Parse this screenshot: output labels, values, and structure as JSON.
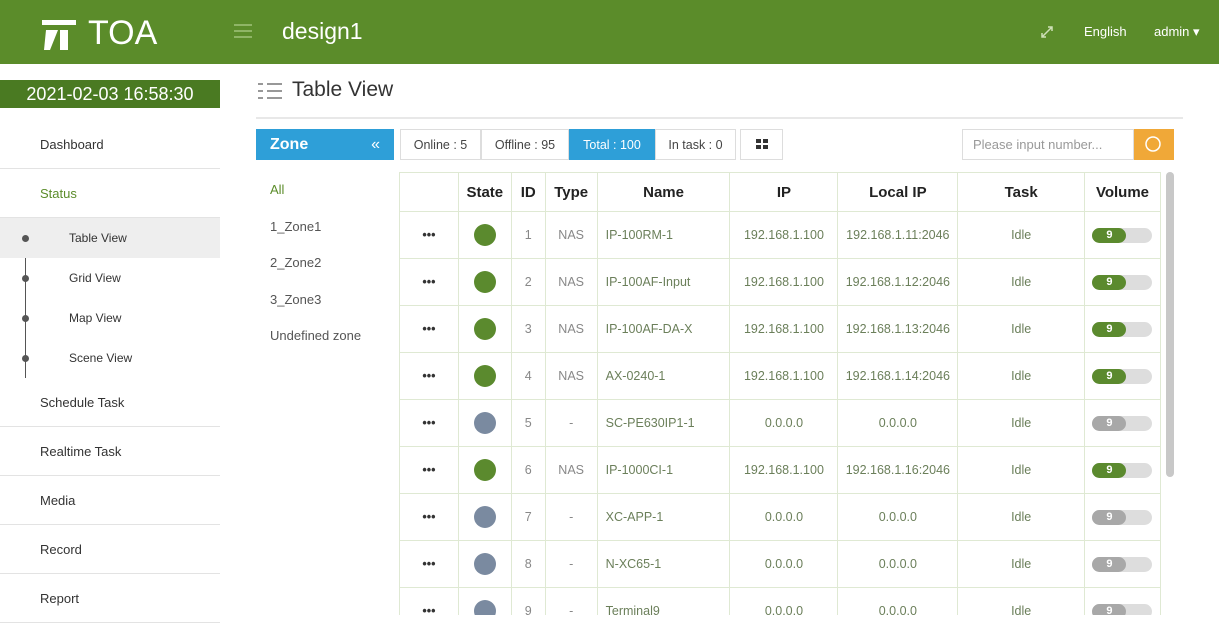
{
  "header": {
    "logo": "TOA",
    "project": "design1",
    "language": "English",
    "user": "admin"
  },
  "sidebar": {
    "datetime": "2021-02-03 16:58:30",
    "menu": [
      {
        "label": "Dashboard"
      },
      {
        "label": "Status",
        "children": [
          "Table View",
          "Grid View",
          "Map View",
          "Scene View"
        ]
      },
      {
        "label": "Schedule Task"
      },
      {
        "label": "Realtime Task"
      },
      {
        "label": "Media"
      },
      {
        "label": "Record"
      },
      {
        "label": "Report"
      }
    ]
  },
  "page_title": "Table View",
  "zone": {
    "title": "Zone",
    "items": [
      "All",
      "1_Zone1",
      "2_Zone2",
      "3_Zone3",
      "Undefined zone"
    ]
  },
  "filters": [
    "Online : 5",
    "Offline : 95",
    "Total : 100",
    "In task : 0"
  ],
  "search_placeholder": "Please input number...",
  "table": {
    "columns": [
      "State",
      "ID",
      "Type",
      "Name",
      "IP",
      "Local IP",
      "Task",
      "Volume"
    ],
    "rows": [
      {
        "state_color": "#5b8a2e",
        "id": 1,
        "type": "NAS",
        "name": "IP-100RM-1",
        "ip": "192.168.1.100",
        "local_ip": "192.168.1.11:2046",
        "task": "Idle",
        "volume": 9
      },
      {
        "state_color": "#5b8a2e",
        "id": 2,
        "type": "NAS",
        "name": "IP-100AF-Input",
        "ip": "192.168.1.100",
        "local_ip": "192.168.1.12:2046",
        "task": "Idle",
        "volume": 9
      },
      {
        "state_color": "#5b8a2e",
        "id": 3,
        "type": "NAS",
        "name": "IP-100AF-DA-X",
        "ip": "192.168.1.100",
        "local_ip": "192.168.1.13:2046",
        "task": "Idle",
        "volume": 9
      },
      {
        "state_color": "#5b8a2e",
        "id": 4,
        "type": "NAS",
        "name": "AX-0240-1",
        "ip": "192.168.1.100",
        "local_ip": "192.168.1.14:2046",
        "task": "Idle",
        "volume": 9
      },
      {
        "state_color": "#7a8aa0",
        "id": 5,
        "type": "-",
        "name": "SC-PE630IP1-1",
        "ip": "0.0.0.0",
        "local_ip": "0.0.0.0",
        "task": "Idle",
        "volume": 9
      },
      {
        "state_color": "#5b8a2e",
        "id": 6,
        "type": "NAS",
        "name": "IP-1000CI-1",
        "ip": "192.168.1.100",
        "local_ip": "192.168.1.16:2046",
        "task": "Idle",
        "volume": 9
      },
      {
        "state_color": "#7a8aa0",
        "id": 7,
        "type": "-",
        "name": "XC-APP-1",
        "ip": "0.0.0.0",
        "local_ip": "0.0.0.0",
        "task": "Idle",
        "volume": 9
      },
      {
        "state_color": "#7a8aa0",
        "id": 8,
        "type": "-",
        "name": "N-XC65-1",
        "ip": "0.0.0.0",
        "local_ip": "0.0.0.0",
        "task": "Idle",
        "volume": 9
      },
      {
        "state_color": "#7a8aa0",
        "id": 9,
        "type": "-",
        "name": "Terminal9",
        "ip": "0.0.0.0",
        "local_ip": "0.0.0.0",
        "task": "Idle",
        "volume": 9
      }
    ]
  }
}
